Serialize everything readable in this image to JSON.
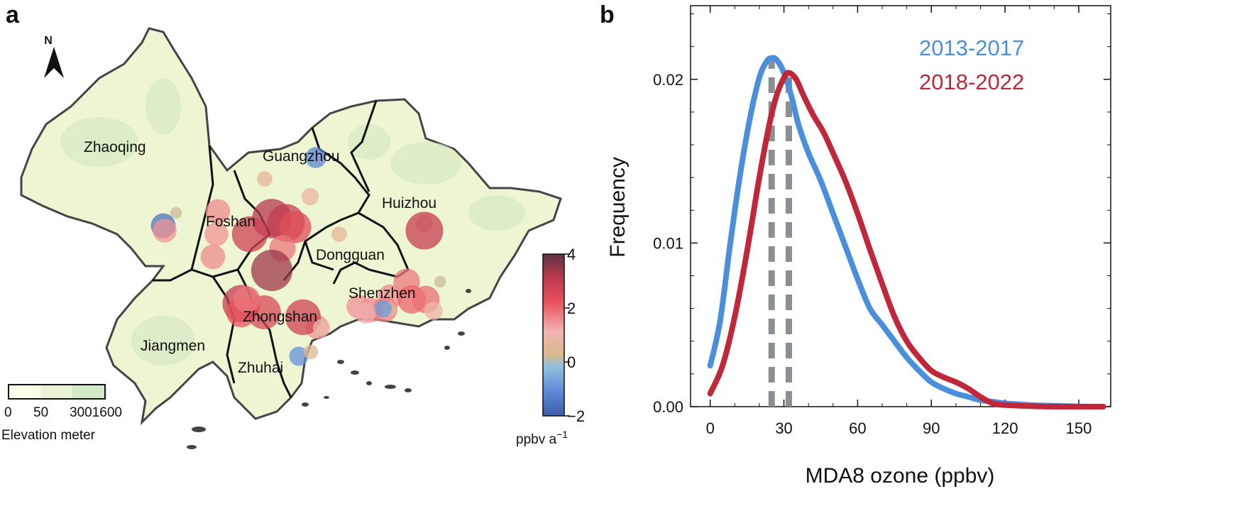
{
  "panel_a": {
    "label": "a",
    "north_label": "N",
    "cities": [
      {
        "name": "Zhaoqing"
      },
      {
        "name": "Guangzhou"
      },
      {
        "name": "Huizhou"
      },
      {
        "name": "Foshan"
      },
      {
        "name": "Dongguan"
      },
      {
        "name": "Shenzhen"
      },
      {
        "name": "Zhongshan"
      },
      {
        "name": "Jiangmen"
      },
      {
        "name": "Zhuhai"
      }
    ],
    "elevation_legend": {
      "title": "Elevation meter",
      "ticks": [
        "0",
        "50",
        "3001600"
      ],
      "colors": [
        "#fbfde9",
        "#e9f4d6",
        "#d2e9c8"
      ]
    },
    "colorbar": {
      "unit_label": "ppbv a",
      "unit_exponent": "−1",
      "min": -2,
      "max": 4,
      "tick_labels": [
        "4",
        "2",
        "0",
        "−2"
      ],
      "tick_values": [
        4,
        2,
        0,
        -2
      ],
      "colors": [
        "#3e5da6",
        "#5a86d6",
        "#8fbfe0",
        "#d8b98a",
        "#f3b3b3",
        "#e8545c",
        "#c0394e",
        "#5b3444"
      ]
    },
    "trend_sites": [
      {
        "city": "Guangzhou",
        "trend": -1.2
      },
      {
        "city": "Guangzhou",
        "trend": 0.6
      },
      {
        "city": "Guangzhou",
        "trend": 0.8
      },
      {
        "city": "Zhaoqing",
        "trend": -1.6
      },
      {
        "city": "Zhaoqing",
        "trend": 1.5
      },
      {
        "city": "Zhaoqing",
        "trend": 0.2
      },
      {
        "city": "Foshan",
        "trend": 1.6
      },
      {
        "city": "Foshan",
        "trend": 3.2
      },
      {
        "city": "Foshan",
        "trend": 3.0
      },
      {
        "city": "Foshan",
        "trend": 2.8
      },
      {
        "city": "Foshan",
        "trend": 2.4
      },
      {
        "city": "Foshan",
        "trend": 1.8
      },
      {
        "city": "Foshan",
        "trend": 1.6
      },
      {
        "city": "Foshan",
        "trend": 1.5
      },
      {
        "city": "Foshan",
        "trend": 3.4
      },
      {
        "city": "Foshan",
        "trend": 3.0
      },
      {
        "city": "Foshan",
        "trend": 2.2
      },
      {
        "city": "Dongguan",
        "trend": 2.6
      },
      {
        "city": "Huizhou",
        "trend": 0.6
      },
      {
        "city": "Huizhou",
        "trend": 0.8
      },
      {
        "city": "Zhongshan",
        "trend": 3.0
      },
      {
        "city": "Zhongshan",
        "trend": 1.8
      },
      {
        "city": "Zhongshan",
        "trend": 1.5
      },
      {
        "city": "Zhongshan",
        "trend": 2.8
      },
      {
        "city": "Zhongshan",
        "trend": 0.8
      },
      {
        "city": "Zhuhai",
        "trend": -1.0
      },
      {
        "city": "Zhuhai",
        "trend": 0.5
      },
      {
        "city": "Shenzhen",
        "trend": 1.8
      },
      {
        "city": "Shenzhen",
        "trend": 1.6
      },
      {
        "city": "Shenzhen",
        "trend": 2.0
      },
      {
        "city": "Shenzhen",
        "trend": 1.9
      },
      {
        "city": "Shenzhen",
        "trend": 1.5
      },
      {
        "city": "Shenzhen",
        "trend": 1.6
      },
      {
        "city": "Shenzhen",
        "trend": 1.7
      },
      {
        "city": "Shenzhen",
        "trend": 1.2
      },
      {
        "city": "Shenzhen",
        "trend": 0.9
      },
      {
        "city": "Shenzhen",
        "trend": 0.5
      },
      {
        "city": "Shenzhen",
        "trend": -0.8
      },
      {
        "city": "Shenzhen",
        "trend": 0.2
      }
    ]
  },
  "chart_data": {
    "label": "b",
    "type": "line",
    "title": "",
    "xlabel": "MDA8 ozone (ppbv)",
    "ylabel": "Frequency",
    "xlim": [
      -8,
      163
    ],
    "ylim": [
      0,
      0.0245
    ],
    "xticks": [
      0,
      30,
      60,
      90,
      120,
      150
    ],
    "xtick_labels": [
      "0",
      "30",
      "60",
      "90",
      "120",
      "150"
    ],
    "yticks": [
      0,
      0.01,
      0.02
    ],
    "ytick_labels": [
      "0.00",
      "0.01",
      "0.02"
    ],
    "legend_position": "top-right",
    "series": [
      {
        "name": "2013-2017",
        "color": "#4a8fdb",
        "peak_x": 25,
        "points": [
          [
            0,
            0.0025
          ],
          [
            4,
            0.0052
          ],
          [
            8,
            0.0098
          ],
          [
            12,
            0.014
          ],
          [
            16,
            0.0175
          ],
          [
            20,
            0.0201
          ],
          [
            23,
            0.0211
          ],
          [
            25,
            0.0213
          ],
          [
            27,
            0.0212
          ],
          [
            30,
            0.0204
          ],
          [
            33,
            0.019
          ],
          [
            36,
            0.0172
          ],
          [
            40,
            0.0155
          ],
          [
            45,
            0.0138
          ],
          [
            50,
            0.0118
          ],
          [
            55,
            0.0098
          ],
          [
            60,
            0.0078
          ],
          [
            65,
            0.006
          ],
          [
            70,
            0.005
          ],
          [
            75,
            0.004
          ],
          [
            80,
            0.003
          ],
          [
            85,
            0.0022
          ],
          [
            90,
            0.0015
          ],
          [
            95,
            0.0011
          ],
          [
            100,
            0.0008
          ],
          [
            105,
            0.0006
          ],
          [
            110,
            0.0004
          ],
          [
            115,
            0.0003
          ],
          [
            120,
            0.0002
          ],
          [
            130,
            0.0001
          ],
          [
            140,
            5e-05
          ],
          [
            150,
            1e-05
          ],
          [
            160,
            0.0
          ]
        ]
      },
      {
        "name": "2018-2022",
        "color": "#c0283a",
        "peak_x": 32,
        "points": [
          [
            0,
            0.0008
          ],
          [
            5,
            0.0025
          ],
          [
            10,
            0.0055
          ],
          [
            15,
            0.0095
          ],
          [
            20,
            0.014
          ],
          [
            24,
            0.0172
          ],
          [
            27,
            0.019
          ],
          [
            30,
            0.0201
          ],
          [
            32,
            0.0204
          ],
          [
            35,
            0.02
          ],
          [
            38,
            0.019
          ],
          [
            42,
            0.0178
          ],
          [
            46,
            0.0168
          ],
          [
            50,
            0.0155
          ],
          [
            55,
            0.0138
          ],
          [
            60,
            0.0118
          ],
          [
            65,
            0.0096
          ],
          [
            70,
            0.0075
          ],
          [
            75,
            0.0055
          ],
          [
            80,
            0.004
          ],
          [
            85,
            0.003
          ],
          [
            90,
            0.0022
          ],
          [
            95,
            0.0018
          ],
          [
            100,
            0.0015
          ],
          [
            105,
            0.0011
          ],
          [
            110,
            0.0006
          ],
          [
            115,
            0.0002
          ],
          [
            120,
            0.0001
          ],
          [
            130,
            3e-05
          ],
          [
            140,
            0.0
          ],
          [
            150,
            0.0
          ],
          [
            160,
            0.0
          ]
        ]
      }
    ]
  }
}
